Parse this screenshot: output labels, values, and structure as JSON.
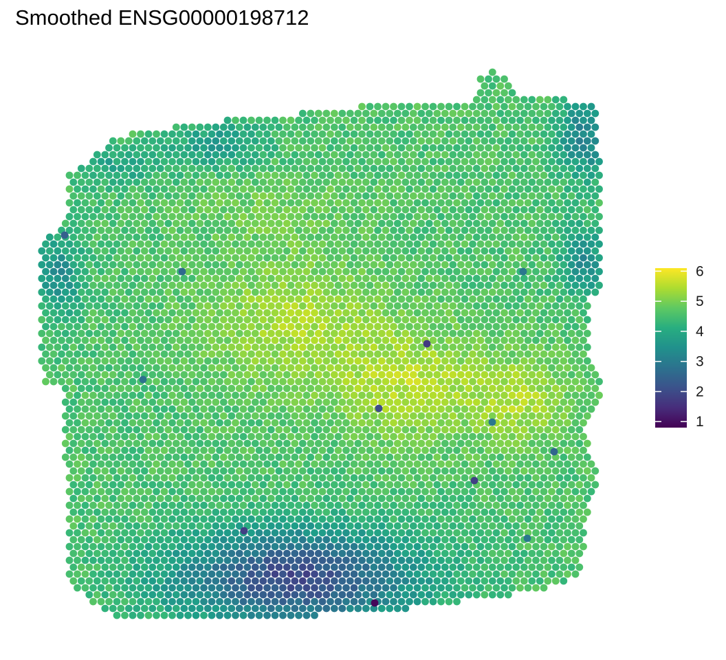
{
  "chart_data": {
    "type": "spatial-scatter",
    "title": "Smoothed ENSG00000198712",
    "xlabel": "",
    "ylabel": "",
    "grid": false,
    "axes_visible": false,
    "point_layout": "hexagonal spot grid (tissue section)",
    "color_scale": {
      "name": "viridis",
      "range": [
        0.8,
        6.1
      ],
      "ticks": [
        1,
        2,
        3,
        4,
        5,
        6
      ],
      "stops": [
        "#440154",
        "#3b528b",
        "#21918c",
        "#5ec962",
        "#fde725"
      ]
    },
    "legend_placement": "right",
    "summary": {
      "typical_value": 4.6,
      "high_value_regions": [
        "center",
        "center-right"
      ],
      "low_value_regions": [
        "bottom-center",
        "top-right edge",
        "left edge"
      ],
      "min_observed": 0.8,
      "max_observed": 6.1
    }
  }
}
